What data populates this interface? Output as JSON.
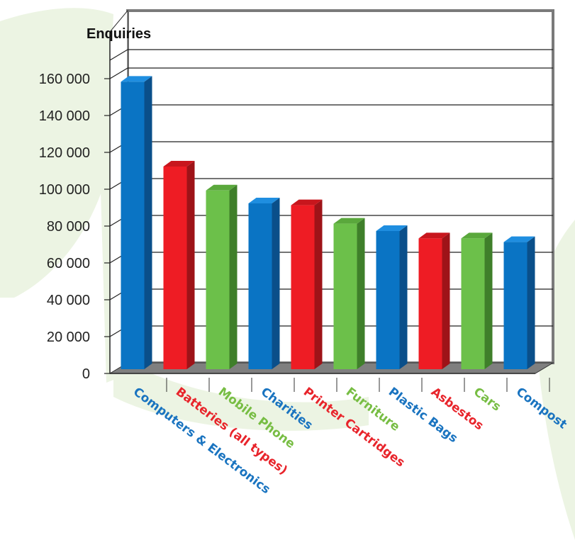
{
  "chart_data": {
    "type": "bar",
    "ylabel": "Enquiries",
    "xlabel": "",
    "categories": [
      "Computers & Electronics",
      "Batteries (all types)",
      "Mobile Phone",
      "Charities",
      "Printer Cartridges",
      "Furniture",
      "Plastic Bags",
      "Asbestos",
      "Cars",
      "Compost"
    ],
    "values": [
      156000,
      110000,
      97000,
      90000,
      89000,
      79000,
      75000,
      71000,
      71000,
      69000
    ],
    "bar_colors": [
      "blue",
      "red",
      "green",
      "blue",
      "red",
      "green",
      "blue",
      "red",
      "green",
      "blue"
    ],
    "ylim": [
      0,
      180000
    ],
    "yticks": [
      0,
      20000,
      40000,
      60000,
      80000,
      100000,
      120000,
      140000,
      160000
    ],
    "ytick_labels": [
      "0",
      "20 000",
      "40 000",
      "60 000",
      "80 000",
      "100 000",
      "120 000",
      "140 000",
      "160 000"
    ],
    "grid": true,
    "style": "3d-column"
  },
  "palette": {
    "blue": {
      "front": "#0a74c4",
      "side": "#0a4f8a",
      "top": "#1f8ee0",
      "label": "#1a74c0"
    },
    "red": {
      "front": "#ee1c24",
      "side": "#9e1318",
      "top": "#c8161d",
      "label": "#e8242b"
    },
    "green": {
      "front": "#6cc04a",
      "side": "#3f7f2a",
      "top": "#5aa83c",
      "label": "#77bd43"
    },
    "floor": "#7f7f7f",
    "floor_dark": "#6e6e6e",
    "wall_border": "#7a7a7a",
    "blob": "#ecf4e3"
  }
}
